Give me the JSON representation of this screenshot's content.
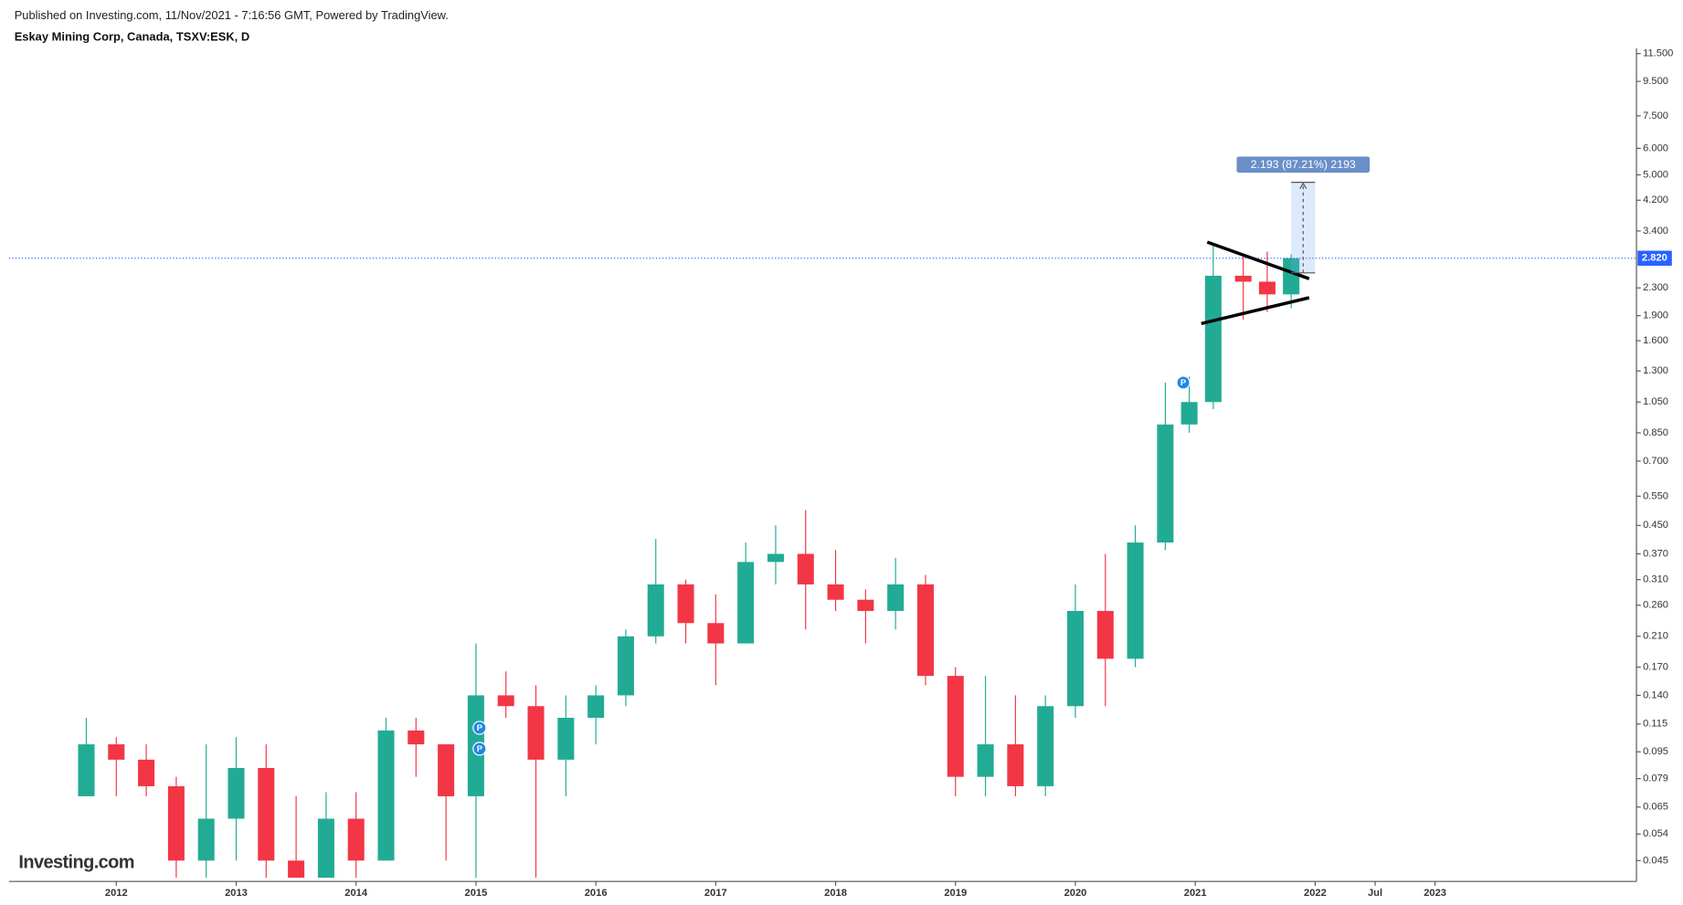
{
  "chart_data": {
    "type": "candlestick",
    "header": "Published on Investing.com, 11/Nov/2021 - 7:16:56 GMT, Powered by TradingView.",
    "title": "Eskay Mining Corp, Canada, TSXV:ESK, D",
    "logo": "Investing.com",
    "log_scale": true,
    "up_color": "#22ab94",
    "down_color": "#f23645",
    "x": [
      2011.75,
      2012.0,
      2012.25,
      2012.5,
      2012.75,
      2013.0,
      2013.25,
      2013.5,
      2013.75,
      2014.0,
      2014.25,
      2014.5,
      2014.75,
      2015.0,
      2015.25,
      2015.5,
      2015.75,
      2016.0,
      2016.25,
      2016.5,
      2016.75,
      2017.0,
      2017.25,
      2017.5,
      2017.75,
      2018.0,
      2018.25,
      2018.5,
      2018.75,
      2019.0,
      2019.25,
      2019.5,
      2019.75,
      2020.0,
      2020.25,
      2020.5,
      2020.75,
      2020.95,
      2021.15,
      2021.4,
      2021.6,
      2021.8
    ],
    "open": [
      0.07,
      0.1,
      0.09,
      0.075,
      0.045,
      0.06,
      0.085,
      0.045,
      0.04,
      0.06,
      0.045,
      0.11,
      0.1,
      0.07,
      0.14,
      0.13,
      0.09,
      0.12,
      0.14,
      0.21,
      0.3,
      0.23,
      0.2,
      0.35,
      0.37,
      0.3,
      0.27,
      0.25,
      0.3,
      0.16,
      0.08,
      0.1,
      0.075,
      0.13,
      0.25,
      0.18,
      0.4,
      0.9,
      1.05,
      2.5,
      2.4,
      2.2
    ],
    "high": [
      0.12,
      0.105,
      0.1,
      0.08,
      0.1,
      0.105,
      0.1,
      0.07,
      0.072,
      0.072,
      0.12,
      0.12,
      0.1,
      0.2,
      0.165,
      0.15,
      0.14,
      0.15,
      0.22,
      0.41,
      0.31,
      0.28,
      0.4,
      0.45,
      0.5,
      0.38,
      0.29,
      0.36,
      0.32,
      0.17,
      0.16,
      0.14,
      0.14,
      0.3,
      0.37,
      0.45,
      1.2,
      1.25,
      3.1,
      2.9,
      2.95,
      2.9
    ],
    "low": [
      0.07,
      0.07,
      0.07,
      0.04,
      0.04,
      0.045,
      0.04,
      0.04,
      0.04,
      0.04,
      0.045,
      0.08,
      0.045,
      0.04,
      0.12,
      0.04,
      0.07,
      0.1,
      0.13,
      0.2,
      0.2,
      0.15,
      0.2,
      0.3,
      0.22,
      0.25,
      0.2,
      0.22,
      0.15,
      0.07,
      0.07,
      0.07,
      0.07,
      0.12,
      0.13,
      0.17,
      0.38,
      0.85,
      1.0,
      1.85,
      1.95,
      2.0
    ],
    "close": [
      0.1,
      0.09,
      0.075,
      0.045,
      0.06,
      0.085,
      0.045,
      0.04,
      0.06,
      0.045,
      0.11,
      0.1,
      0.07,
      0.14,
      0.13,
      0.09,
      0.12,
      0.14,
      0.21,
      0.3,
      0.23,
      0.2,
      0.35,
      0.37,
      0.3,
      0.27,
      0.25,
      0.3,
      0.16,
      0.08,
      0.1,
      0.075,
      0.13,
      0.25,
      0.18,
      0.4,
      0.9,
      1.05,
      2.5,
      2.4,
      2.2,
      2.82
    ],
    "xlim": [
      2011.105,
      2024.68
    ],
    "xticks": [
      2012,
      2013,
      2014,
      2015,
      2016,
      2017,
      2018,
      2019,
      2020,
      2021,
      2022,
      {
        "value": 2022.5,
        "label": "Jul"
      },
      2023
    ],
    "ylim": [
      0.039,
      11.93
    ],
    "yticks": [
      {
        "value": 11.5,
        "label": "11.500"
      },
      {
        "value": 9.5,
        "label": "9.500"
      },
      {
        "value": 7.5,
        "label": "7.500"
      },
      {
        "value": 6.0,
        "label": "6.000"
      },
      {
        "value": 5.0,
        "label": "5.000"
      },
      {
        "value": 4.2,
        "label": "4.200"
      },
      {
        "value": 3.4,
        "label": "3.400"
      },
      {
        "value": 2.3,
        "label": "2.300"
      },
      {
        "value": 1.9,
        "label": "1.900"
      },
      {
        "value": 1.6,
        "label": "1.600"
      },
      {
        "value": 1.3,
        "label": "1.300"
      },
      {
        "value": 1.05,
        "label": "1.050"
      },
      {
        "value": 0.85,
        "label": "0.850"
      },
      {
        "value": 0.7,
        "label": "0.700"
      },
      {
        "value": 0.55,
        "label": "0.550"
      },
      {
        "value": 0.45,
        "label": "0.450"
      },
      {
        "value": 0.37,
        "label": "0.370"
      },
      {
        "value": 0.31,
        "label": "0.310"
      },
      {
        "value": 0.26,
        "label": "0.260"
      },
      {
        "value": 0.21,
        "label": "0.210"
      },
      {
        "value": 0.17,
        "label": "0.170"
      },
      {
        "value": 0.14,
        "label": "0.140"
      },
      0.115,
      0.095,
      0.079,
      0.065,
      0.054,
      0.045
    ],
    "last_price": {
      "value": 2.82,
      "label": "2.820",
      "color": "#2962ff"
    },
    "trendlines": [
      {
        "x": [
          2021.1,
          2021.95
        ],
        "y": [
          3.15,
          2.45
        ],
        "color": "#000000"
      },
      {
        "x": [
          2021.05,
          2021.95
        ],
        "y": [
          1.8,
          2.15
        ],
        "color": "#000000"
      }
    ],
    "measure": {
      "x": [
        2021.8,
        2022.0
      ],
      "y": [
        2.55,
        4.75
      ],
      "label": "2.193 (87.21%) 2193",
      "color": "#6a8fc8"
    },
    "markers": [
      {
        "label": "P",
        "x": 2015.03,
        "y": 0.112
      },
      {
        "label": "P",
        "x": 2015.03,
        "y": 0.097
      },
      {
        "label": "P",
        "x": 2020.9,
        "y": 1.2
      }
    ]
  }
}
